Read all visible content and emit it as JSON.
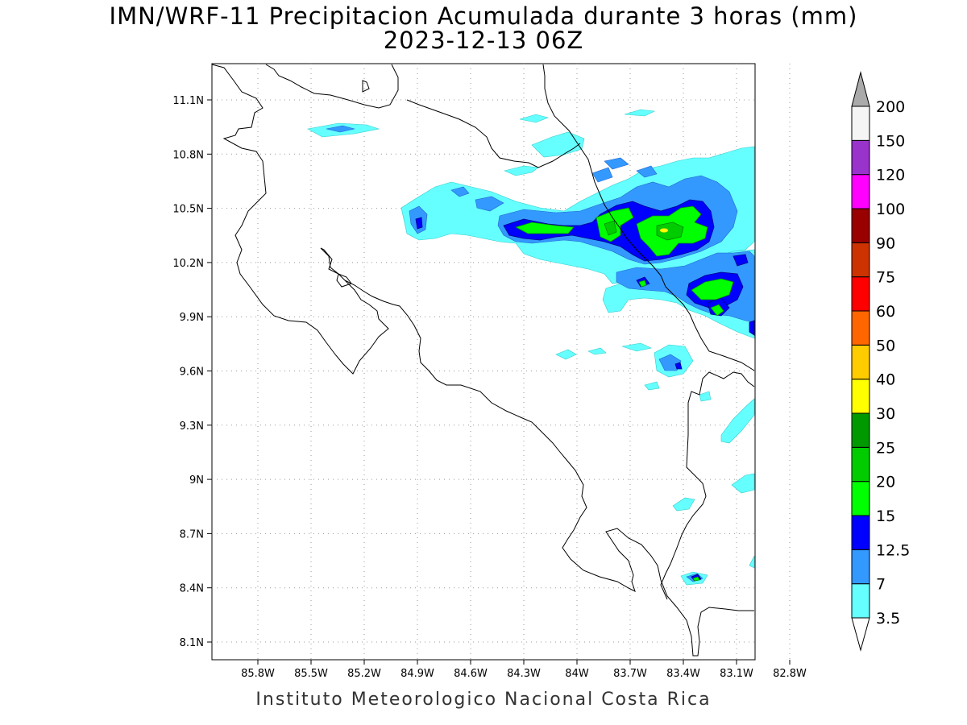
{
  "title_line1": "IMN/WRF-11 Precipitacion Acumulada durante 3 horas (mm)",
  "title_line2": "2023-12-13 06Z",
  "footer": "Instituto Meteorologico Nacional Costa Rica",
  "map": {
    "lon_range": [
      -86.0,
      -83.0
    ],
    "lat_range": [
      8.0,
      11.3
    ],
    "lon_ticks": [
      "85.8W",
      "85.5W",
      "85.2W",
      "84.9W",
      "84.6W",
      "84.3W",
      "84W",
      "83.7W",
      "83.4W",
      "83.1W",
      "82.8W"
    ],
    "lat_ticks": [
      "8.1N",
      "8.4N",
      "8.7N",
      "9N",
      "9.3N",
      "9.6N",
      "9.9N",
      "10.2N",
      "10.5N",
      "10.8N",
      "11.1N"
    ],
    "grid": "dotted"
  },
  "colorbar": {
    "levels": [
      "3.5",
      "7",
      "12.5",
      "15",
      "20",
      "25",
      "30",
      "40",
      "50",
      "60",
      "75",
      "90",
      "100",
      "120",
      "150",
      "200"
    ],
    "colors": [
      "#66ffff",
      "#3399ff",
      "#0000ff",
      "#00ff00",
      "#00cc00",
      "#009900",
      "#ffff00",
      "#ffcc00",
      "#ff6600",
      "#ff0000",
      "#cc3300",
      "#990000",
      "#ff00ff",
      "#9933cc",
      "#f5f5f5",
      "#aaaaaa"
    ]
  }
}
